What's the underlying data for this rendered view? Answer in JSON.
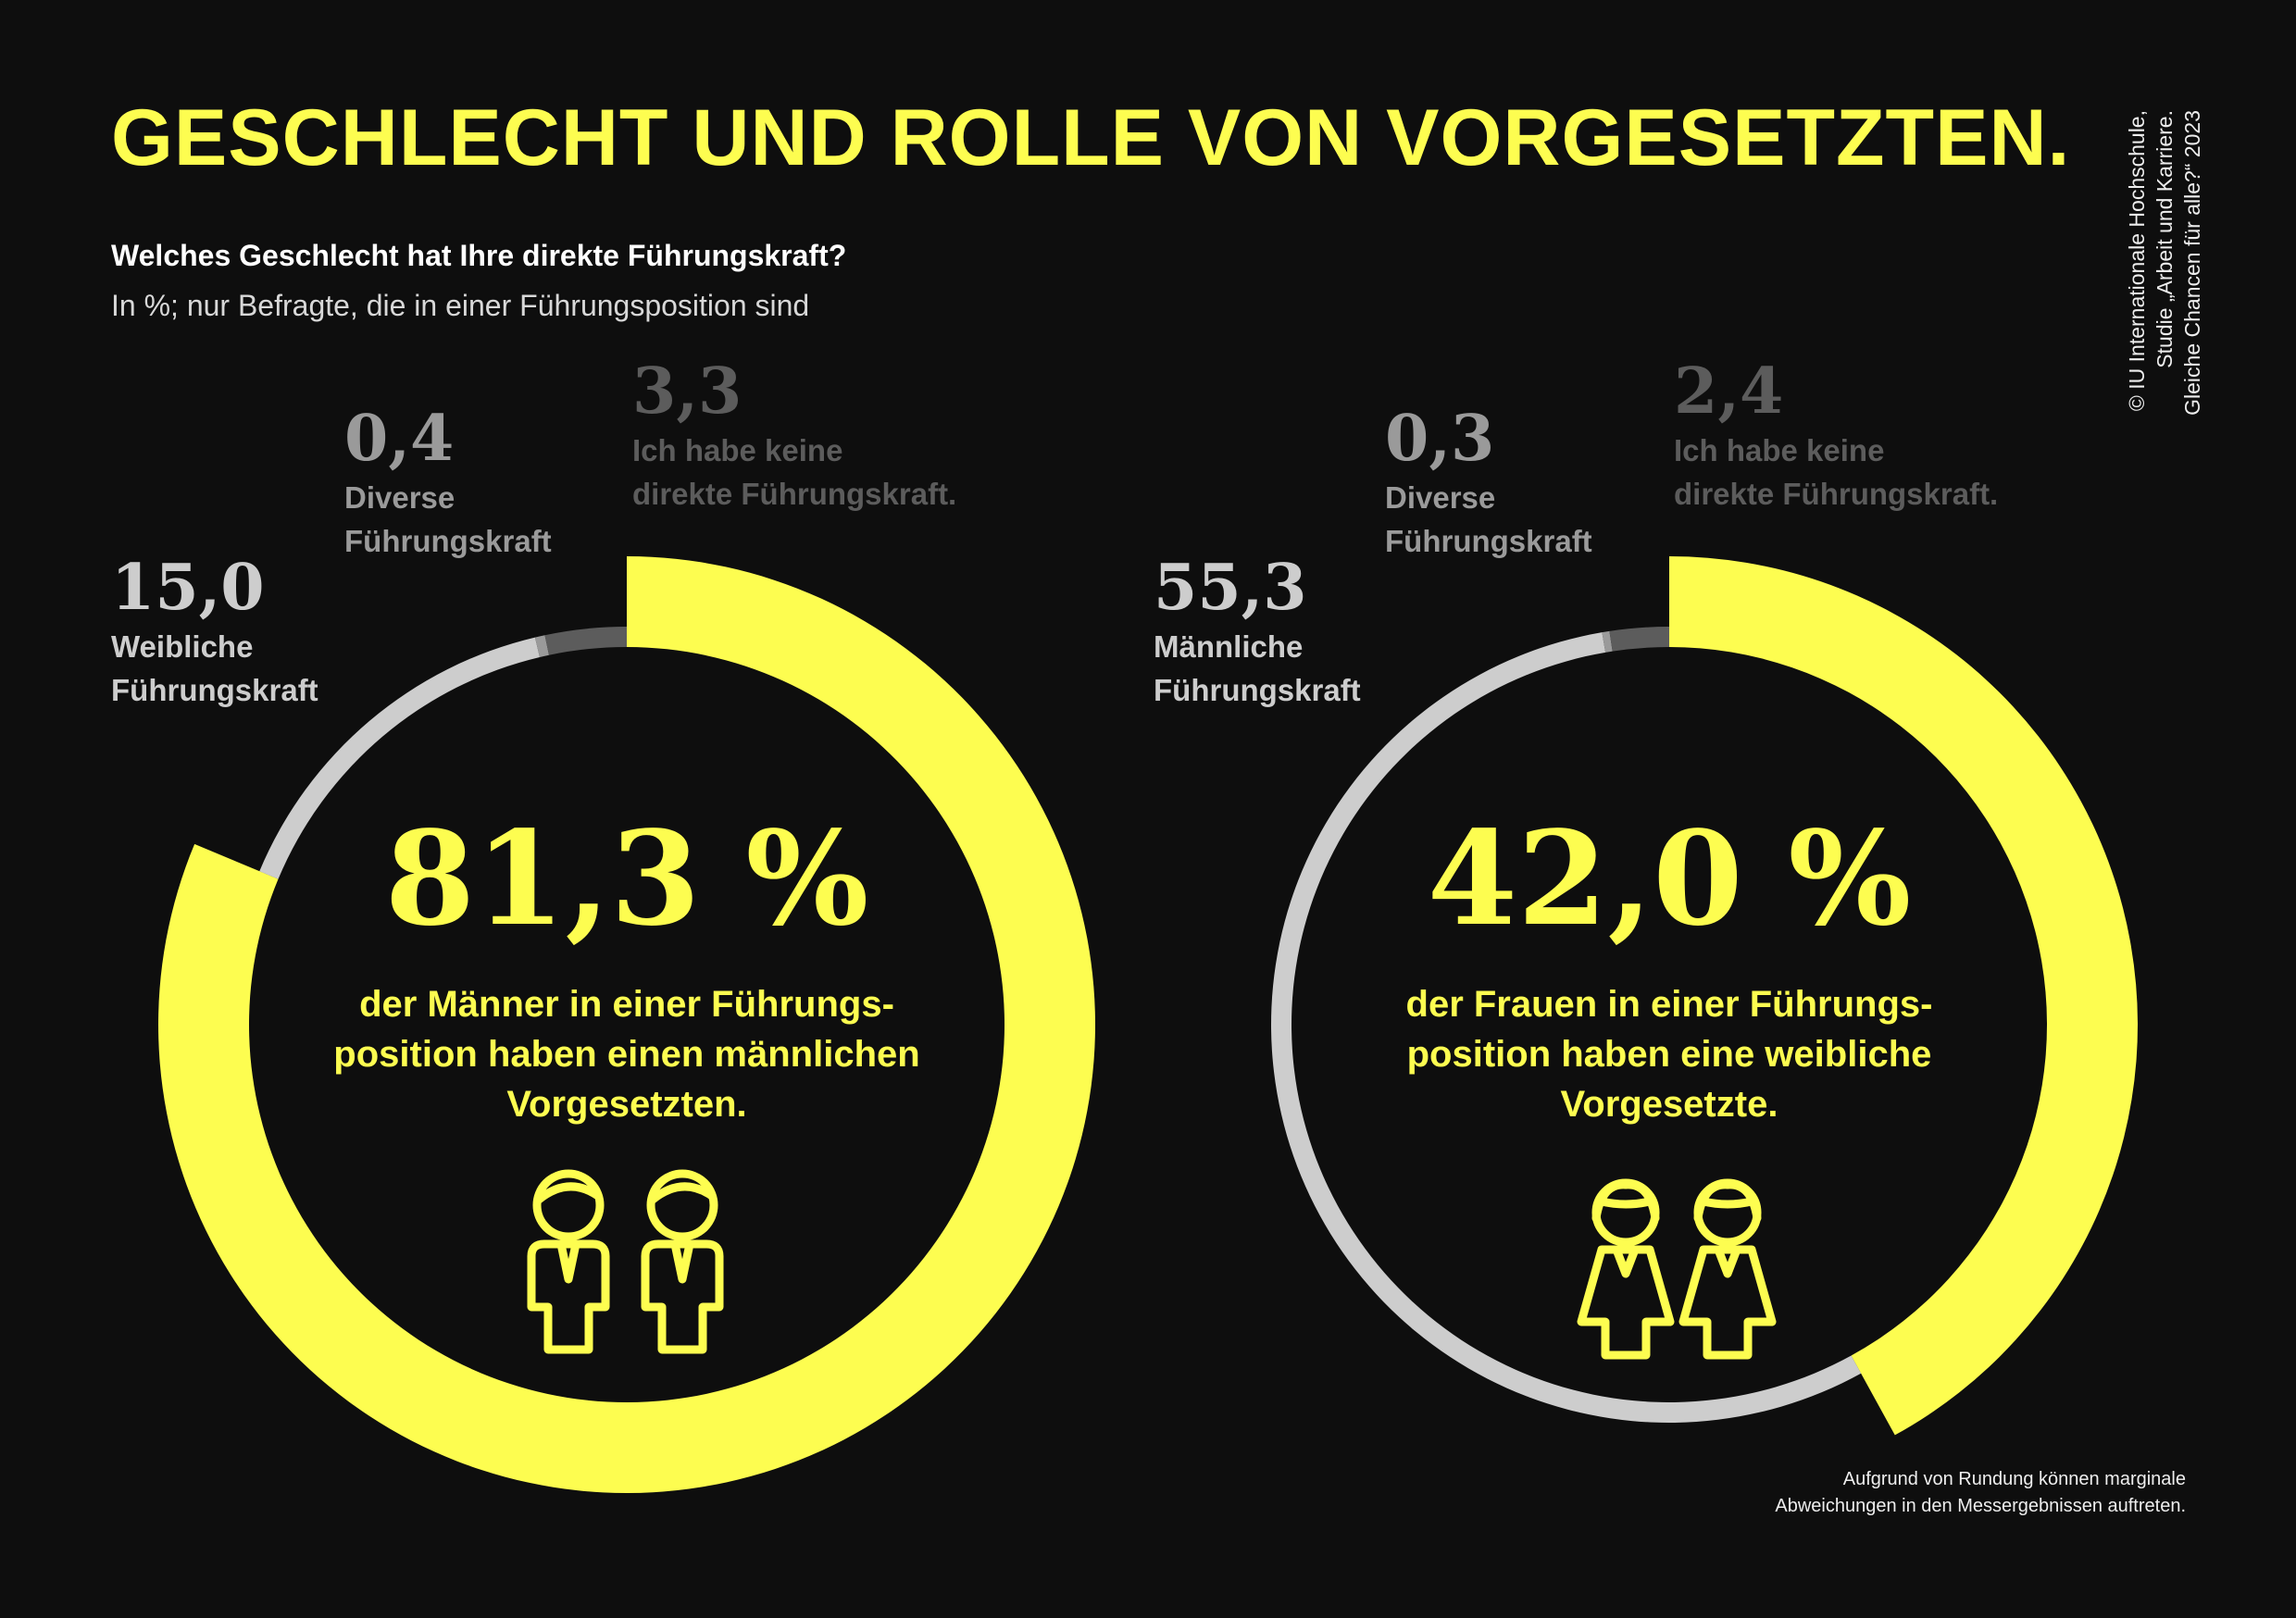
{
  "title": "GESCHLECHT UND ROLLE VON VORGESETZTEN.",
  "question": "Welches Geschlecht hat Ihre direkte Führungskraft?",
  "subtitle": "In %; nur Befragte, die in einer Führungsposition sind",
  "source": "© IU Internationale Hochschule,\nStudie „Arbeit und Karriere.\nGleiche Chancen für alle?“ 2023",
  "footnote": "Aufgrund von Rundung können marginale\nAbweichungen in den Messergebnissen auftreten.",
  "chart_data": [
    {
      "type": "pie",
      "categories": [
        null,
        "Weibliche\nFührungskraft",
        "Diverse\nFührungskraft",
        "Ich habe keine\ndirekte Führungskraft."
      ],
      "values": [
        81.3,
        15.0,
        0.4,
        3.3
      ],
      "value_labels": [
        "81,3 %",
        "15,0",
        "0,4",
        "3,3"
      ],
      "colors": [
        "#fdfd50",
        "#cdcdcd",
        "#9a9a9a",
        "#5c5c5c"
      ],
      "center_text": "der Männer in einer Führungs-\nposition haben einen männlichen\nVorgesetzten."
    },
    {
      "type": "pie",
      "categories": [
        null,
        "Männliche\nFührungskraft",
        "Diverse\nFührungskraft",
        "Ich habe keine\ndirekte Führungskraft."
      ],
      "values": [
        42.0,
        55.3,
        0.3,
        2.4
      ],
      "value_labels": [
        "42,0 %",
        "55,3",
        "0,3",
        "2,4"
      ],
      "colors": [
        "#fdfd50",
        "#cdcdcd",
        "#9a9a9a",
        "#5c5c5c"
      ],
      "center_text": "der Frauen in einer Führungs-\nposition haben eine weibliche\nVorgesetzte."
    }
  ]
}
